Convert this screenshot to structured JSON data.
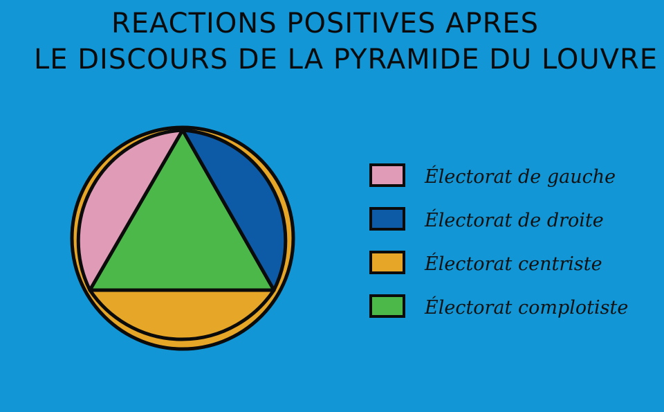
{
  "title": {
    "line1": "REACTIONS POSITIVES APRES",
    "line2": "LE DISCOURS DE LA PYRAMIDE DU LOUVRE"
  },
  "chart_data": {
    "type": "pie",
    "title": "REACTIONS POSITIVES APRES LE DISCOURS DE LA PYRAMIDE DU LOUVRE",
    "legend_position": "right",
    "series": [
      {
        "name": "Électorat de gauche",
        "value": 17,
        "color": "#e09bb7"
      },
      {
        "name": "Électorat de droite",
        "value": 17,
        "color": "#0d5aa7"
      },
      {
        "name": "Électorat centriste",
        "value": 20,
        "color": "#e6a627"
      },
      {
        "name": "Électorat complotiste",
        "value": 46,
        "color": "#4cb84a"
      }
    ]
  }
}
